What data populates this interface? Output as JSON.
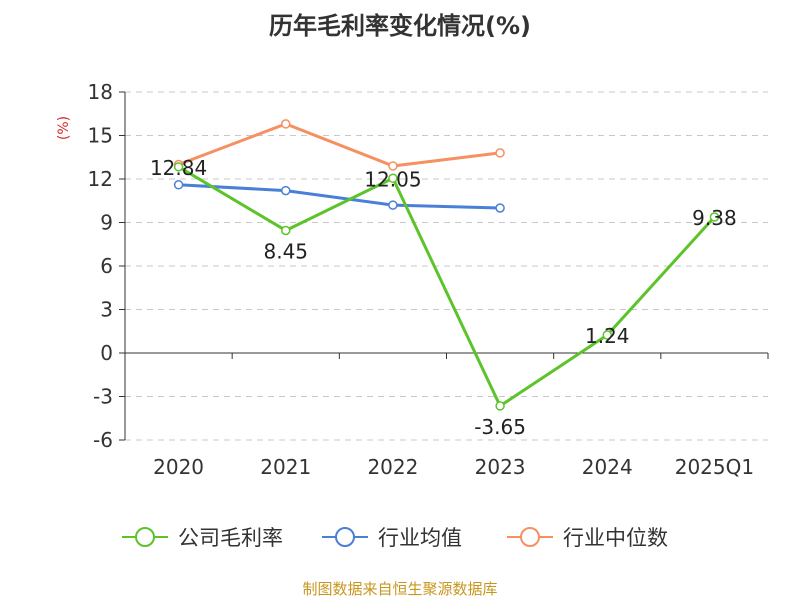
{
  "chart_data": {
    "type": "line",
    "title": "历年毛利率变化情况(%)",
    "ylabel": "(%)",
    "ylim": [
      -6,
      18
    ],
    "yticks": [
      18,
      15,
      12,
      9,
      6,
      3,
      0,
      -3,
      -6
    ],
    "categories": [
      "2020",
      "2021",
      "2022",
      "2023",
      "2024",
      "2025Q1"
    ],
    "grid": true,
    "legend_position": "bottom",
    "series": [
      {
        "name": "公司毛利率",
        "color": "#5cc42a",
        "values": [
          12.84,
          8.45,
          12.05,
          -3.65,
          1.24,
          9.38
        ],
        "labels": [
          "12.84",
          "8.45",
          "12.05",
          "-3.65",
          "1.24",
          "9.38"
        ]
      },
      {
        "name": "行业均值",
        "color": "#4a7fd8",
        "values": [
          11.6,
          11.2,
          10.2,
          10.0,
          null,
          null
        ]
      },
      {
        "name": "行业中位数",
        "color": "#f79060",
        "values": [
          13.0,
          15.8,
          12.9,
          13.8,
          null,
          null
        ]
      }
    ]
  },
  "source_note": "制图数据来自恒生聚源数据库"
}
